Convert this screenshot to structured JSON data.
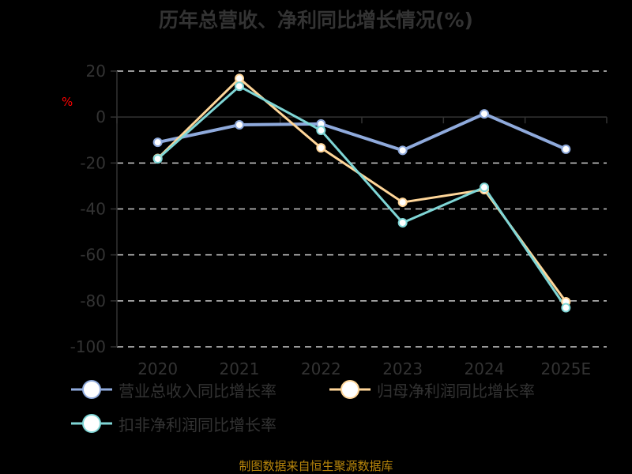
{
  "title": "历年总营收、净利同比增长情况(%)",
  "unit_label": "%",
  "footer": "制图数据来自恒生聚源数据库",
  "colors": {
    "revenue": "#8faadc",
    "net_profit": "#ffd699",
    "deducted_net_profit": "#7fd6d6",
    "axis_text": "#333333",
    "grid": "#cccccc",
    "unit": "#ff0000",
    "footer": "#b8860b"
  },
  "legend": [
    {
      "label": "营业总收入同比增长率",
      "color": "#8faadc"
    },
    {
      "label": "归母净利润同比增长率",
      "color": "#ffd699"
    },
    {
      "label": "扣非净利润同比增长率",
      "color": "#7fd6d6"
    }
  ],
  "chart_data": {
    "type": "line",
    "title": "历年总营收、净利同比增长情况(%)",
    "xlabel": "",
    "ylabel": "%",
    "categories": [
      "2020",
      "2021",
      "2022",
      "2023",
      "2024",
      "2025E"
    ],
    "ylim": [
      -100,
      20
    ],
    "yticks": [
      20,
      0,
      -20,
      -40,
      -60,
      -80,
      -100
    ],
    "grid": "horizontal dashed",
    "legend_position": "bottom",
    "series": [
      {
        "name": "营业总收入同比增长率",
        "values": [
          -11.0,
          -3.4,
          -3.0,
          -14.5,
          1.4,
          -14.0
        ]
      },
      {
        "name": "归母净利润同比增长率",
        "values": [
          -18.0,
          16.8,
          -13.4,
          -37.1,
          -31.6,
          -80.4
        ]
      },
      {
        "name": "扣非净利润同比增长率",
        "values": [
          -18.2,
          13.4,
          -5.8,
          -46.0,
          -30.6,
          -83.0
        ]
      }
    ]
  }
}
